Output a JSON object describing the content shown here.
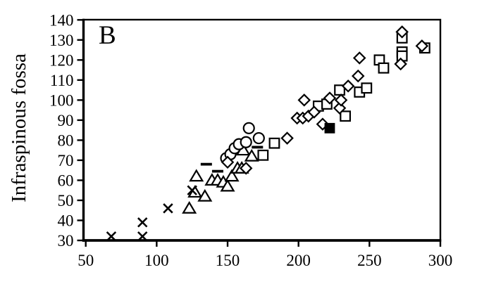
{
  "panel_label": "B",
  "colors": {
    "marker": "#000000",
    "axis": "#000000",
    "background": "#ffffff"
  },
  "chart_data": {
    "type": "scatter",
    "title": "",
    "xlabel": "",
    "ylabel": "Infraspinous fossa",
    "xlim": [
      50,
      300
    ],
    "ylim": [
      30,
      140
    ],
    "xticks": [
      50,
      100,
      150,
      200,
      250,
      300
    ],
    "yticks": [
      30,
      40,
      50,
      60,
      70,
      80,
      90,
      100,
      110,
      120,
      130,
      140
    ],
    "grid": false,
    "legend": "none",
    "series": [
      {
        "name": "dash-marker-group",
        "marker": "dash",
        "points": [
          [
            135,
            68
          ],
          [
            143,
            64.5
          ],
          [
            171,
            76.5
          ]
        ]
      },
      {
        "name": "open-triangle-group",
        "marker": "triangle-open",
        "points": [
          [
            123,
            46
          ],
          [
            127,
            54
          ],
          [
            134,
            52
          ],
          [
            128,
            62
          ],
          [
            139,
            60
          ],
          [
            143,
            60
          ],
          [
            147,
            59
          ],
          [
            150,
            57
          ],
          [
            153,
            62
          ],
          [
            157,
            66
          ],
          [
            160,
            66
          ],
          [
            161,
            75
          ],
          [
            167,
            72
          ]
        ]
      },
      {
        "name": "open-circle-group",
        "marker": "circle-open",
        "points": [
          [
            149,
            71
          ],
          [
            152,
            73
          ],
          [
            155,
            76
          ],
          [
            158,
            78
          ],
          [
            163,
            79
          ],
          [
            165,
            86
          ],
          [
            172,
            81
          ]
        ]
      },
      {
        "name": "open-square-group",
        "marker": "square-open",
        "points": [
          [
            175,
            72.5
          ],
          [
            183,
            78.5
          ],
          [
            214,
            97
          ],
          [
            220,
            98
          ],
          [
            229,
            105
          ],
          [
            233,
            92
          ],
          [
            243,
            104
          ],
          [
            248,
            106
          ],
          [
            257,
            120
          ],
          [
            260,
            116
          ],
          [
            273,
            131
          ],
          [
            273,
            124
          ],
          [
            273,
            122
          ],
          [
            289,
            126
          ]
        ]
      },
      {
        "name": "open-diamond-group",
        "marker": "diamond-open",
        "points": [
          [
            150,
            69
          ],
          [
            163,
            66
          ],
          [
            192,
            81
          ],
          [
            199,
            91
          ],
          [
            203,
            91
          ],
          [
            207,
            92
          ],
          [
            211,
            94
          ],
          [
            204,
            100
          ],
          [
            217,
            88
          ],
          [
            222,
            101
          ],
          [
            229,
            96
          ],
          [
            230,
            100
          ],
          [
            235,
            107
          ],
          [
            242,
            112
          ],
          [
            243,
            121
          ],
          [
            272,
            118
          ],
          [
            273,
            134
          ],
          [
            287,
            127
          ]
        ]
      },
      {
        "name": "filled-square-group",
        "marker": "square-filled",
        "points": [
          [
            222,
            86
          ]
        ]
      },
      {
        "name": "cross-group",
        "marker": "x",
        "points": [
          [
            68,
            32
          ],
          [
            90,
            32
          ],
          [
            90,
            39
          ],
          [
            108,
            46
          ],
          [
            125,
            55
          ]
        ]
      }
    ]
  }
}
